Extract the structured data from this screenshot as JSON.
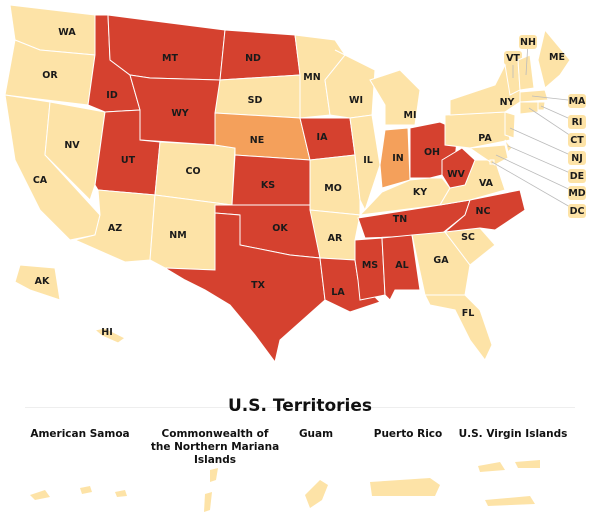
{
  "states": [
    {
      "label": "WA",
      "color": "#fde3a7"
    },
    {
      "label": "OR",
      "color": "#fde3a7"
    },
    {
      "label": "CA",
      "color": "#fde3a7"
    },
    {
      "label": "NV",
      "color": "#fde3a7"
    },
    {
      "label": "ID",
      "color": "#d5412f"
    },
    {
      "label": "MT",
      "color": "#d5412f"
    },
    {
      "label": "WY",
      "color": "#d5412f"
    },
    {
      "label": "UT",
      "color": "#d5412f"
    },
    {
      "label": "AZ",
      "color": "#fde3a7"
    },
    {
      "label": "CO",
      "color": "#fde3a7"
    },
    {
      "label": "NM",
      "color": "#fde3a7"
    },
    {
      "label": "ND",
      "color": "#d5412f"
    },
    {
      "label": "SD",
      "color": "#fde3a7"
    },
    {
      "label": "NE",
      "color": "#f4a05b"
    },
    {
      "label": "KS",
      "color": "#d5412f"
    },
    {
      "label": "OK",
      "color": "#d5412f"
    },
    {
      "label": "TX",
      "color": "#d5412f"
    },
    {
      "label": "MN",
      "color": "#fde3a7"
    },
    {
      "label": "IA",
      "color": "#d5412f"
    },
    {
      "label": "MO",
      "color": "#fde3a7"
    },
    {
      "label": "AR",
      "color": "#fde3a7"
    },
    {
      "label": "LA",
      "color": "#d5412f"
    },
    {
      "label": "WI",
      "color": "#fde3a7"
    },
    {
      "label": "IL",
      "color": "#fde3a7"
    },
    {
      "label": "MI",
      "color": "#fde3a7"
    },
    {
      "label": "IN",
      "color": "#f4a05b"
    },
    {
      "label": "OH",
      "color": "#d5412f"
    },
    {
      "label": "KY",
      "color": "#fde3a7"
    },
    {
      "label": "TN",
      "color": "#d5412f"
    },
    {
      "label": "MS",
      "color": "#d5412f"
    },
    {
      "label": "AL",
      "color": "#d5412f"
    },
    {
      "label": "GA",
      "color": "#fde3a7"
    },
    {
      "label": "FL",
      "color": "#fde3a7"
    },
    {
      "label": "SC",
      "color": "#fde3a7"
    },
    {
      "label": "NC",
      "color": "#d5412f"
    },
    {
      "label": "VA",
      "color": "#fde3a7"
    },
    {
      "label": "WV",
      "color": "#d5412f"
    },
    {
      "label": "PA",
      "color": "#fde3a7"
    },
    {
      "label": "NY",
      "color": "#fde3a7"
    },
    {
      "label": "ME",
      "color": "#fde3a7"
    },
    {
      "label": "VT",
      "color": "#fde3a7"
    },
    {
      "label": "NH",
      "color": "#fde3a7"
    },
    {
      "label": "MA",
      "color": "#fde3a7"
    },
    {
      "label": "RI",
      "color": "#fde3a7"
    },
    {
      "label": "CT",
      "color": "#fde3a7"
    },
    {
      "label": "NJ",
      "color": "#fde3a7"
    },
    {
      "label": "DE",
      "color": "#fde3a7"
    },
    {
      "label": "MD",
      "color": "#fde3a7"
    },
    {
      "label": "DC",
      "color": "#fde3a7"
    },
    {
      "label": "AK",
      "color": "#fde3a7"
    },
    {
      "label": "HI",
      "color": "#fde3a7"
    }
  ],
  "territories": {
    "title": "U.S. Territories",
    "items": [
      {
        "label": "American Samoa",
        "color": "#fde3a7"
      },
      {
        "label": "Commonwealth of the Northern Mariana Islands",
        "color": "#fde3a7"
      },
      {
        "label": "Guam",
        "color": "#fde3a7"
      },
      {
        "label": "Puerto Rico",
        "color": "#fde3a7"
      },
      {
        "label": "U.S. Virgin Islands",
        "color": "#fde3a7"
      }
    ]
  }
}
